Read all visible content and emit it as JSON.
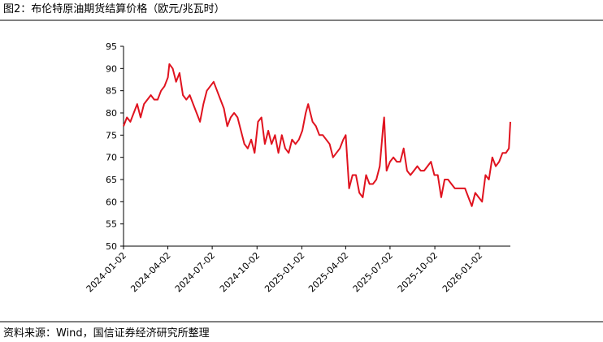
{
  "chart_data": {
    "type": "line",
    "title": "图2：布伦特原油期货结算价格（欧元/兆瓦时）",
    "source": "资料来源：Wind，国信证券经济研究所整理",
    "xlim": [
      "2024-01-02",
      "2026-03-06"
    ],
    "xticks": [
      "2024-01-02",
      "2024-04-02",
      "2024-07-02",
      "2024-10-02",
      "2025-01-02",
      "2025-04-02",
      "2025-07-02",
      "2025-10-02",
      "2026-01-02"
    ],
    "ylim": [
      50,
      95
    ],
    "yticks": [
      50,
      55,
      60,
      65,
      70,
      75,
      80,
      85,
      90,
      95
    ],
    "series": [
      {
        "color": "#e0131f",
        "x": [
          "2024-01-02",
          "2024-01-09",
          "2024-01-16",
          "2024-01-23",
          "2024-01-30",
          "2024-02-06",
          "2024-02-13",
          "2024-02-20",
          "2024-02-27",
          "2024-03-05",
          "2024-03-12",
          "2024-03-19",
          "2024-03-26",
          "2024-04-02",
          "2024-04-05",
          "2024-04-12",
          "2024-04-19",
          "2024-04-26",
          "2024-05-03",
          "2024-05-10",
          "2024-05-17",
          "2024-05-24",
          "2024-05-31",
          "2024-06-07",
          "2024-06-14",
          "2024-06-21",
          "2024-06-28",
          "2024-07-05",
          "2024-07-12",
          "2024-07-19",
          "2024-07-26",
          "2024-08-02",
          "2024-08-09",
          "2024-08-16",
          "2024-08-23",
          "2024-08-30",
          "2024-09-06",
          "2024-09-13",
          "2024-09-20",
          "2024-09-27",
          "2024-10-04",
          "2024-10-11",
          "2024-10-18",
          "2024-10-25",
          "2024-11-01",
          "2024-11-08",
          "2024-11-15",
          "2024-11-22",
          "2024-11-29",
          "2024-12-06",
          "2024-12-13",
          "2024-12-20",
          "2024-12-27",
          "2025-01-03",
          "2025-01-10",
          "2025-01-15",
          "2025-01-24",
          "2025-01-31",
          "2025-02-07",
          "2025-02-14",
          "2025-02-21",
          "2025-02-28",
          "2025-03-07",
          "2025-03-14",
          "2025-03-21",
          "2025-03-28",
          "2025-04-02",
          "2025-04-09",
          "2025-04-16",
          "2025-04-23",
          "2025-04-30",
          "2025-05-07",
          "2025-05-14",
          "2025-05-21",
          "2025-05-28",
          "2025-06-04",
          "2025-06-11",
          "2025-06-18",
          "2025-06-20",
          "2025-06-25",
          "2025-07-02",
          "2025-07-09",
          "2025-07-16",
          "2025-07-23",
          "2025-07-30",
          "2025-08-06",
          "2025-08-13",
          "2025-08-20",
          "2025-08-27",
          "2025-09-03",
          "2025-09-10",
          "2025-09-17",
          "2025-09-24",
          "2025-10-01",
          "2025-10-08",
          "2025-10-15",
          "2025-10-22",
          "2025-10-29",
          "2025-11-05",
          "2025-11-12",
          "2025-11-19",
          "2025-11-26",
          "2025-12-03",
          "2025-12-10",
          "2025-12-17",
          "2025-12-24",
          "2025-12-31",
          "2026-01-07",
          "2026-01-14",
          "2026-01-21",
          "2026-01-28",
          "2026-02-04",
          "2026-02-11",
          "2026-02-18",
          "2026-02-25",
          "2026-03-03",
          "2026-03-06"
        ],
        "values": [
          77,
          79,
          78,
          80,
          82,
          79,
          82,
          83,
          84,
          83,
          83,
          85,
          86,
          88,
          91,
          90,
          87,
          89,
          84,
          83,
          84,
          82,
          80,
          78,
          82,
          85,
          86,
          87,
          85,
          83,
          81,
          77,
          79,
          80,
          79,
          76,
          73,
          72,
          74,
          71,
          78,
          79,
          73,
          76,
          73,
          75,
          71,
          75,
          72,
          71,
          74,
          73,
          74,
          76,
          80,
          82,
          78,
          77,
          75,
          75,
          74,
          73,
          70,
          71,
          72,
          74,
          75,
          63,
          66,
          66,
          62,
          61,
          66,
          64,
          64,
          65,
          68,
          77,
          79,
          67,
          69,
          70,
          69,
          69,
          72,
          67,
          66,
          67,
          68,
          67,
          67,
          68,
          69,
          66,
          66,
          61,
          65,
          65,
          64,
          63,
          63,
          63,
          63,
          61,
          59,
          62,
          61,
          60,
          66,
          65,
          70,
          68,
          69,
          71,
          71,
          72,
          78
        ]
      }
    ]
  }
}
